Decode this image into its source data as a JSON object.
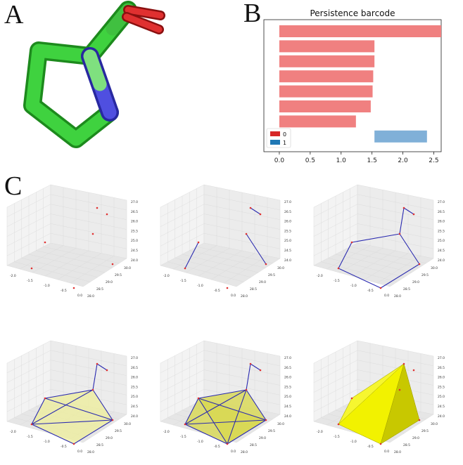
{
  "panels": {
    "a": "A",
    "b": "B",
    "c": "C"
  },
  "colors": {
    "h0": "#f08080",
    "h1": "#80b0d8",
    "legend_h0": "#d62728",
    "legend_h1": "#1f77b4",
    "edge": "#2a2ab0",
    "point": "#e03030",
    "fill_light": "#eeee99",
    "fill_mid": "#d8d850",
    "fill_dark": "#e8e800"
  },
  "chart_data": {
    "type": "bar",
    "title": "Persistence barcode",
    "xlim": [
      -0.25,
      2.62
    ],
    "xticks": [
      0.0,
      0.5,
      1.0,
      1.5,
      2.0,
      2.5
    ],
    "xtick_labels": [
      "0.0",
      "0.5",
      "1.0",
      "1.5",
      "2.0",
      "2.5"
    ],
    "legend": {
      "placement": "lower-left",
      "entries": [
        "0",
        "1"
      ]
    },
    "series": [
      {
        "name": "0",
        "bars": [
          {
            "birth": 0.0,
            "death": 2.62
          },
          {
            "birth": 0.0,
            "death": 1.54
          },
          {
            "birth": 0.0,
            "death": 1.54
          },
          {
            "birth": 0.0,
            "death": 1.52
          },
          {
            "birth": 0.0,
            "death": 1.51
          },
          {
            "birth": 0.0,
            "death": 1.48
          },
          {
            "birth": 0.0,
            "death": 1.24
          }
        ]
      },
      {
        "name": "1",
        "bars": [
          {
            "birth": 1.54,
            "death": 2.39
          }
        ]
      }
    ]
  },
  "axes3d": {
    "z_ticks": [
      "27.0",
      "26.5",
      "26.0",
      "25.5",
      "25.0",
      "24.5",
      "24.0"
    ],
    "y_ticks": [
      "30.0",
      "29.5",
      "29.0",
      "28.5",
      "28.0"
    ],
    "x_ticks": [
      "-2.0",
      "-1.5",
      "-1.0",
      "-0.5",
      "0.0"
    ]
  }
}
